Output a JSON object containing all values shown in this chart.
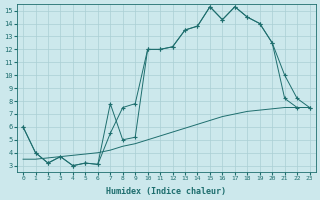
{
  "xlabel": "Humidex (Indice chaleur)",
  "bg_color": "#cce8ec",
  "grid_color": "#aacfd4",
  "line_color": "#1e6e6e",
  "xlim": [
    -0.5,
    23.5
  ],
  "ylim": [
    2.5,
    15.5
  ],
  "xticks": [
    0,
    1,
    2,
    3,
    4,
    5,
    6,
    7,
    8,
    9,
    10,
    11,
    12,
    13,
    14,
    15,
    16,
    17,
    18,
    19,
    20,
    21,
    22,
    23
  ],
  "yticks": [
    3,
    4,
    5,
    6,
    7,
    8,
    9,
    10,
    11,
    12,
    13,
    14,
    15
  ],
  "line1_x": [
    0,
    1,
    2,
    3,
    4,
    5,
    6,
    7,
    8,
    9,
    10,
    11,
    12,
    13,
    14,
    15,
    16,
    17,
    18,
    19,
    20,
    21,
    22,
    23
  ],
  "line1_y": [
    6.0,
    4.0,
    3.2,
    3.7,
    3.0,
    3.2,
    3.1,
    5.5,
    7.5,
    7.8,
    12.0,
    12.0,
    12.2,
    13.5,
    13.8,
    15.3,
    14.3,
    15.3,
    14.5,
    14.0,
    12.5,
    8.2,
    7.5,
    7.5
  ],
  "line2_x": [
    0,
    1,
    2,
    3,
    4,
    5,
    6,
    7,
    8,
    9,
    10,
    11,
    12,
    13,
    14,
    15,
    16,
    17,
    18,
    19,
    20,
    21,
    22,
    23
  ],
  "line2_y": [
    6.0,
    4.0,
    3.2,
    3.7,
    3.0,
    3.2,
    3.1,
    7.8,
    5.0,
    5.2,
    12.0,
    12.0,
    12.2,
    13.5,
    13.8,
    15.3,
    14.3,
    15.3,
    14.5,
    14.0,
    12.5,
    10.0,
    8.2,
    7.5
  ],
  "line3_x": [
    0,
    1,
    2,
    3,
    4,
    5,
    6,
    7,
    8,
    9,
    10,
    11,
    12,
    13,
    14,
    15,
    16,
    17,
    18,
    19,
    20,
    21,
    22,
    23
  ],
  "line3_y": [
    3.5,
    3.5,
    3.6,
    3.7,
    3.8,
    3.9,
    4.0,
    4.2,
    4.5,
    4.7,
    5.0,
    5.3,
    5.6,
    5.9,
    6.2,
    6.5,
    6.8,
    7.0,
    7.2,
    7.3,
    7.4,
    7.5,
    7.5,
    7.5
  ]
}
